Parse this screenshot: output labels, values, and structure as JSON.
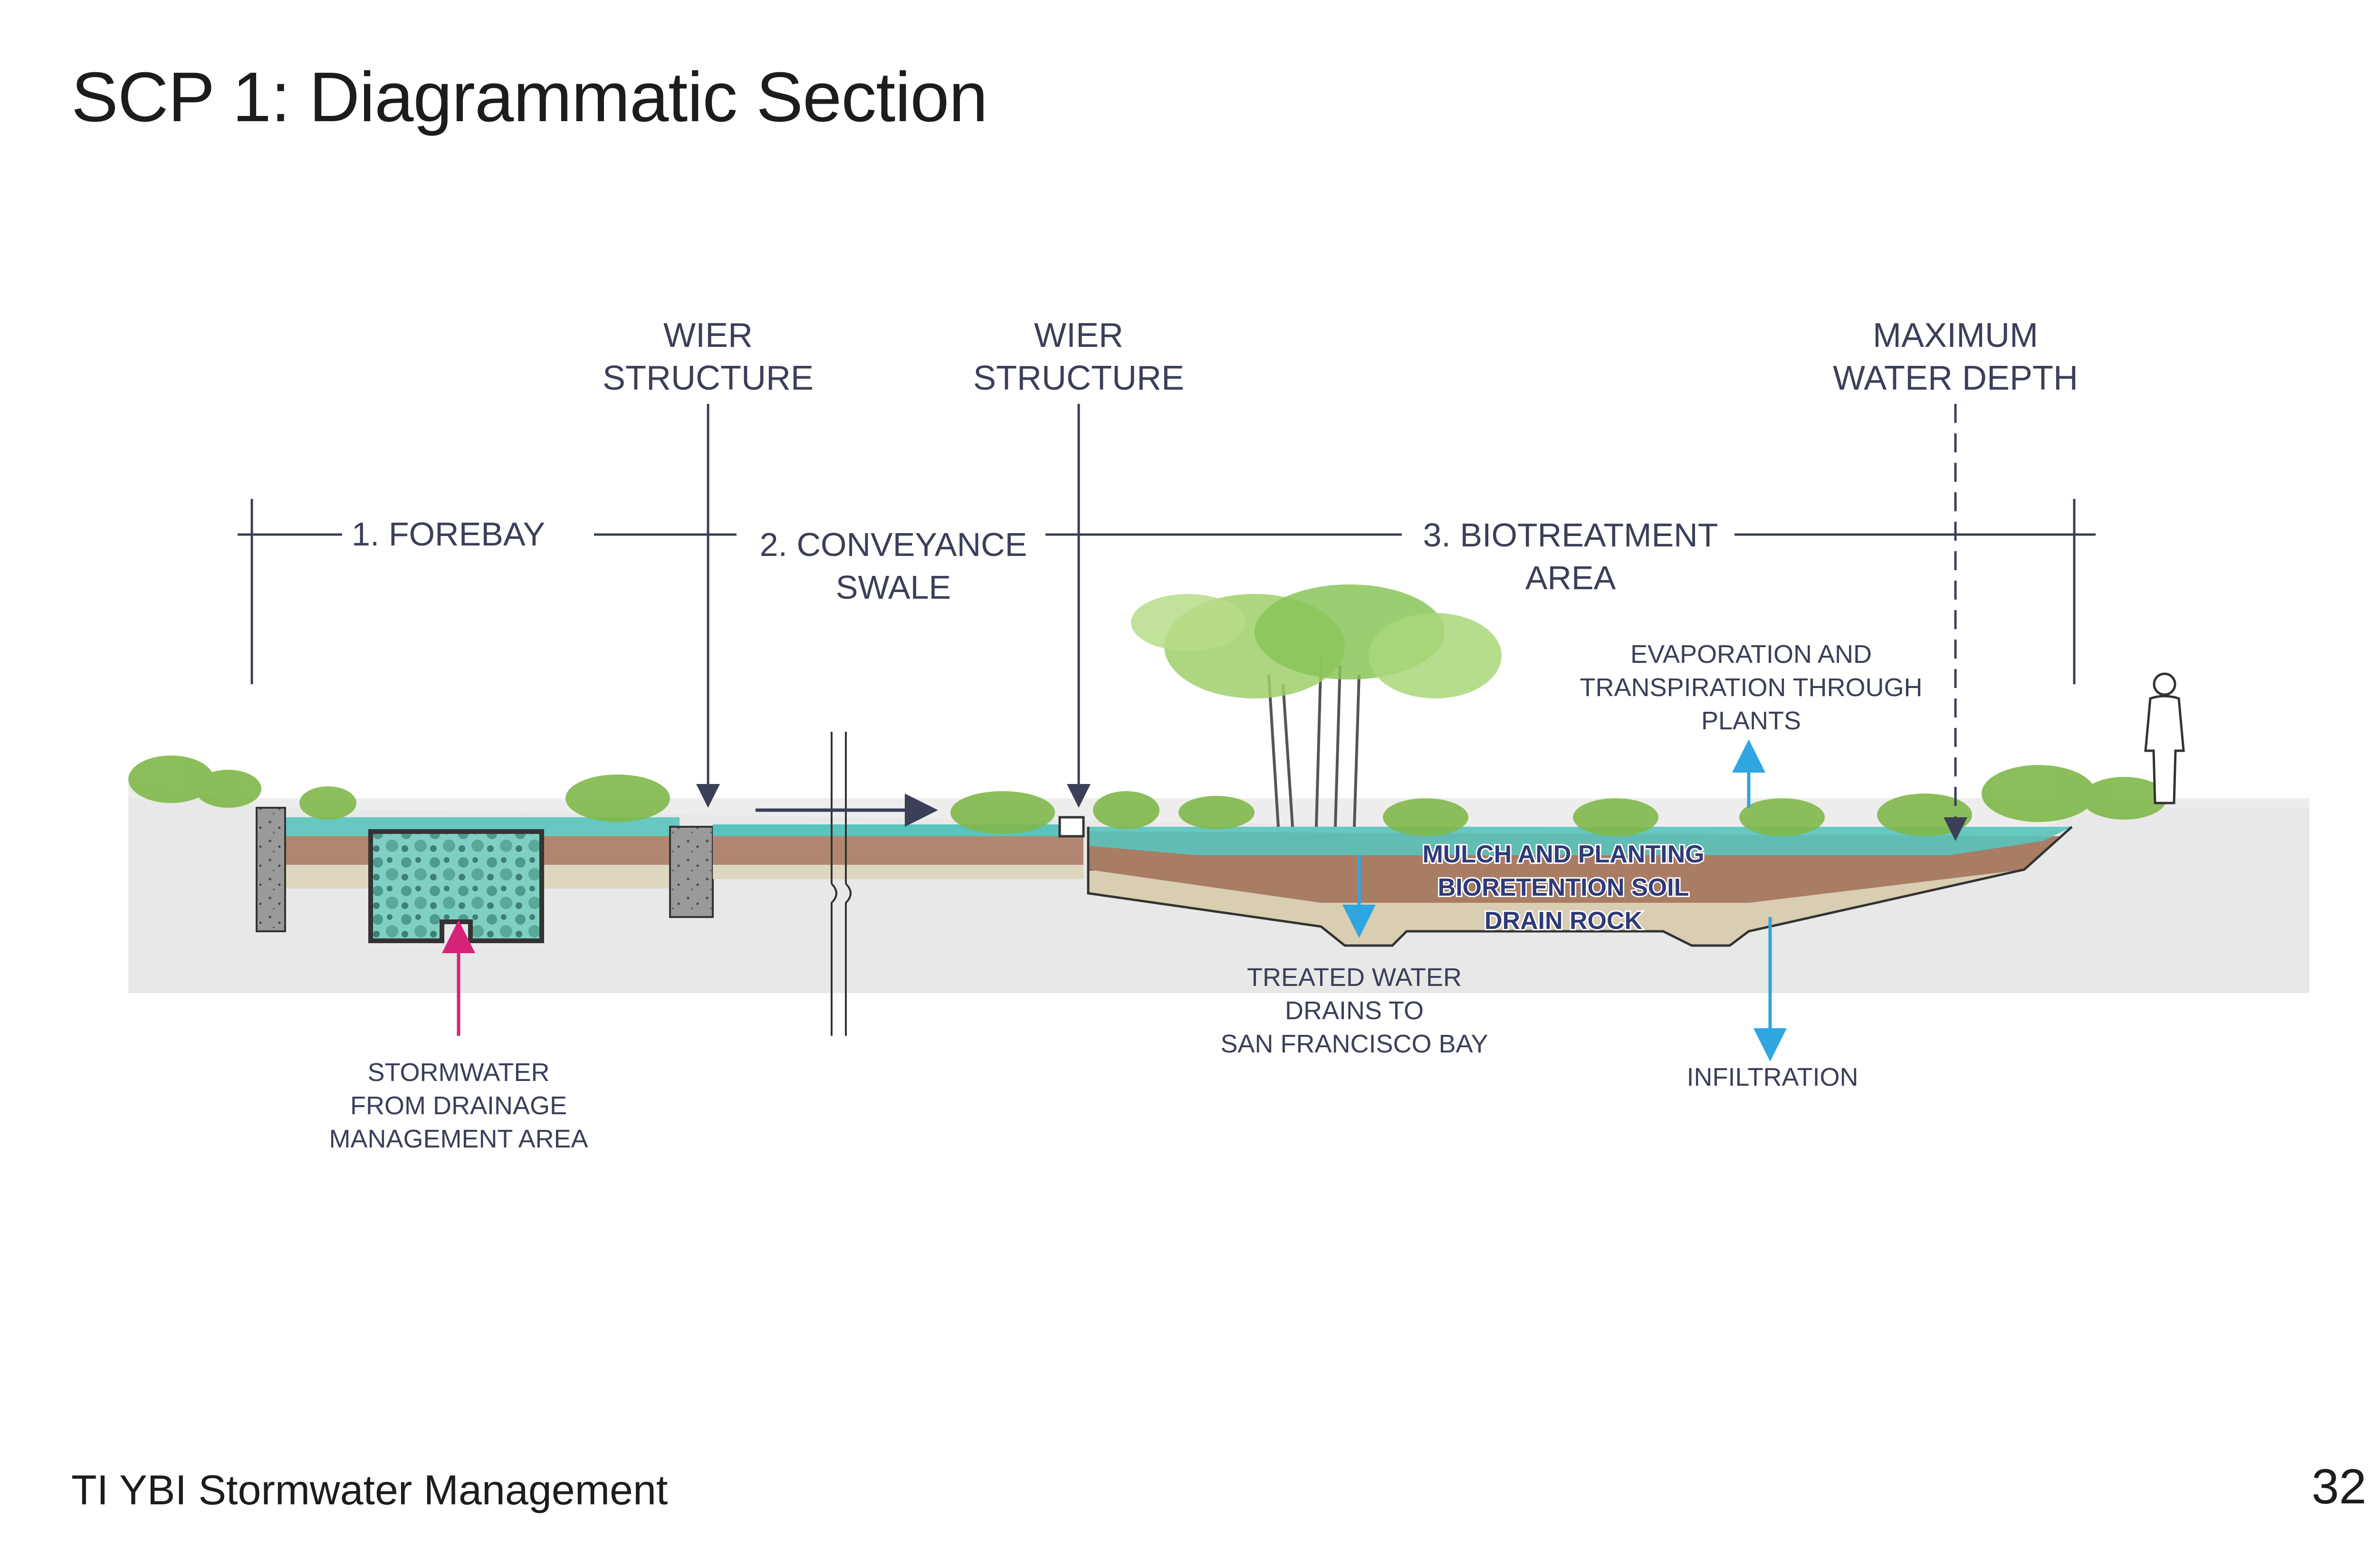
{
  "title": "SCP 1: Diagrammatic Section",
  "footer": {
    "document": "TI YBI Stormwater Management",
    "page_number": "32"
  },
  "diagram": {
    "zones": {
      "forebay": "1. FOREBAY",
      "conveyance_line1": "2. CONVEYANCE",
      "conveyance_line2": "SWALE",
      "biotreatment_line1": "3. BIOTREATMENT",
      "biotreatment_line2": "AREA"
    },
    "callouts": {
      "wier1_line1": "WIER",
      "wier1_line2": "STRUCTURE",
      "wier2_line1": "WIER",
      "wier2_line2": "STRUCTURE",
      "max_depth_line1": "MAXIMUM",
      "max_depth_line2": "WATER DEPTH",
      "evap_line1": "EVAPORATION AND",
      "evap_line2": "TRANSPIRATION THROUGH",
      "evap_line3": "PLANTS",
      "stormwater_line1": "STORMWATER",
      "stormwater_line2": "FROM DRAINAGE",
      "stormwater_line3": "MANAGEMENT AREA",
      "treated_line1": "TREATED WATER",
      "treated_line2": "DRAINS TO",
      "treated_line3": "SAN FRANCISCO BAY",
      "infiltration": "INFILTRATION"
    },
    "layers": {
      "mulch": "MULCH AND PLANTING",
      "soil": "BIORETENTION SOIL",
      "rock": "DRAIN ROCK"
    },
    "colors": {
      "ground": "#e8e8e8",
      "water": "#59c3bd",
      "soil": "#a97c64",
      "rock": "#d9cdb2",
      "concrete": "#8b8b8b",
      "planting": "#7fb84a",
      "tree_canopy": "#9ecf6a",
      "arrow_blue": "#2fa6e0",
      "arrow_magenta": "#d6237a",
      "line": "#3b3f58"
    }
  }
}
